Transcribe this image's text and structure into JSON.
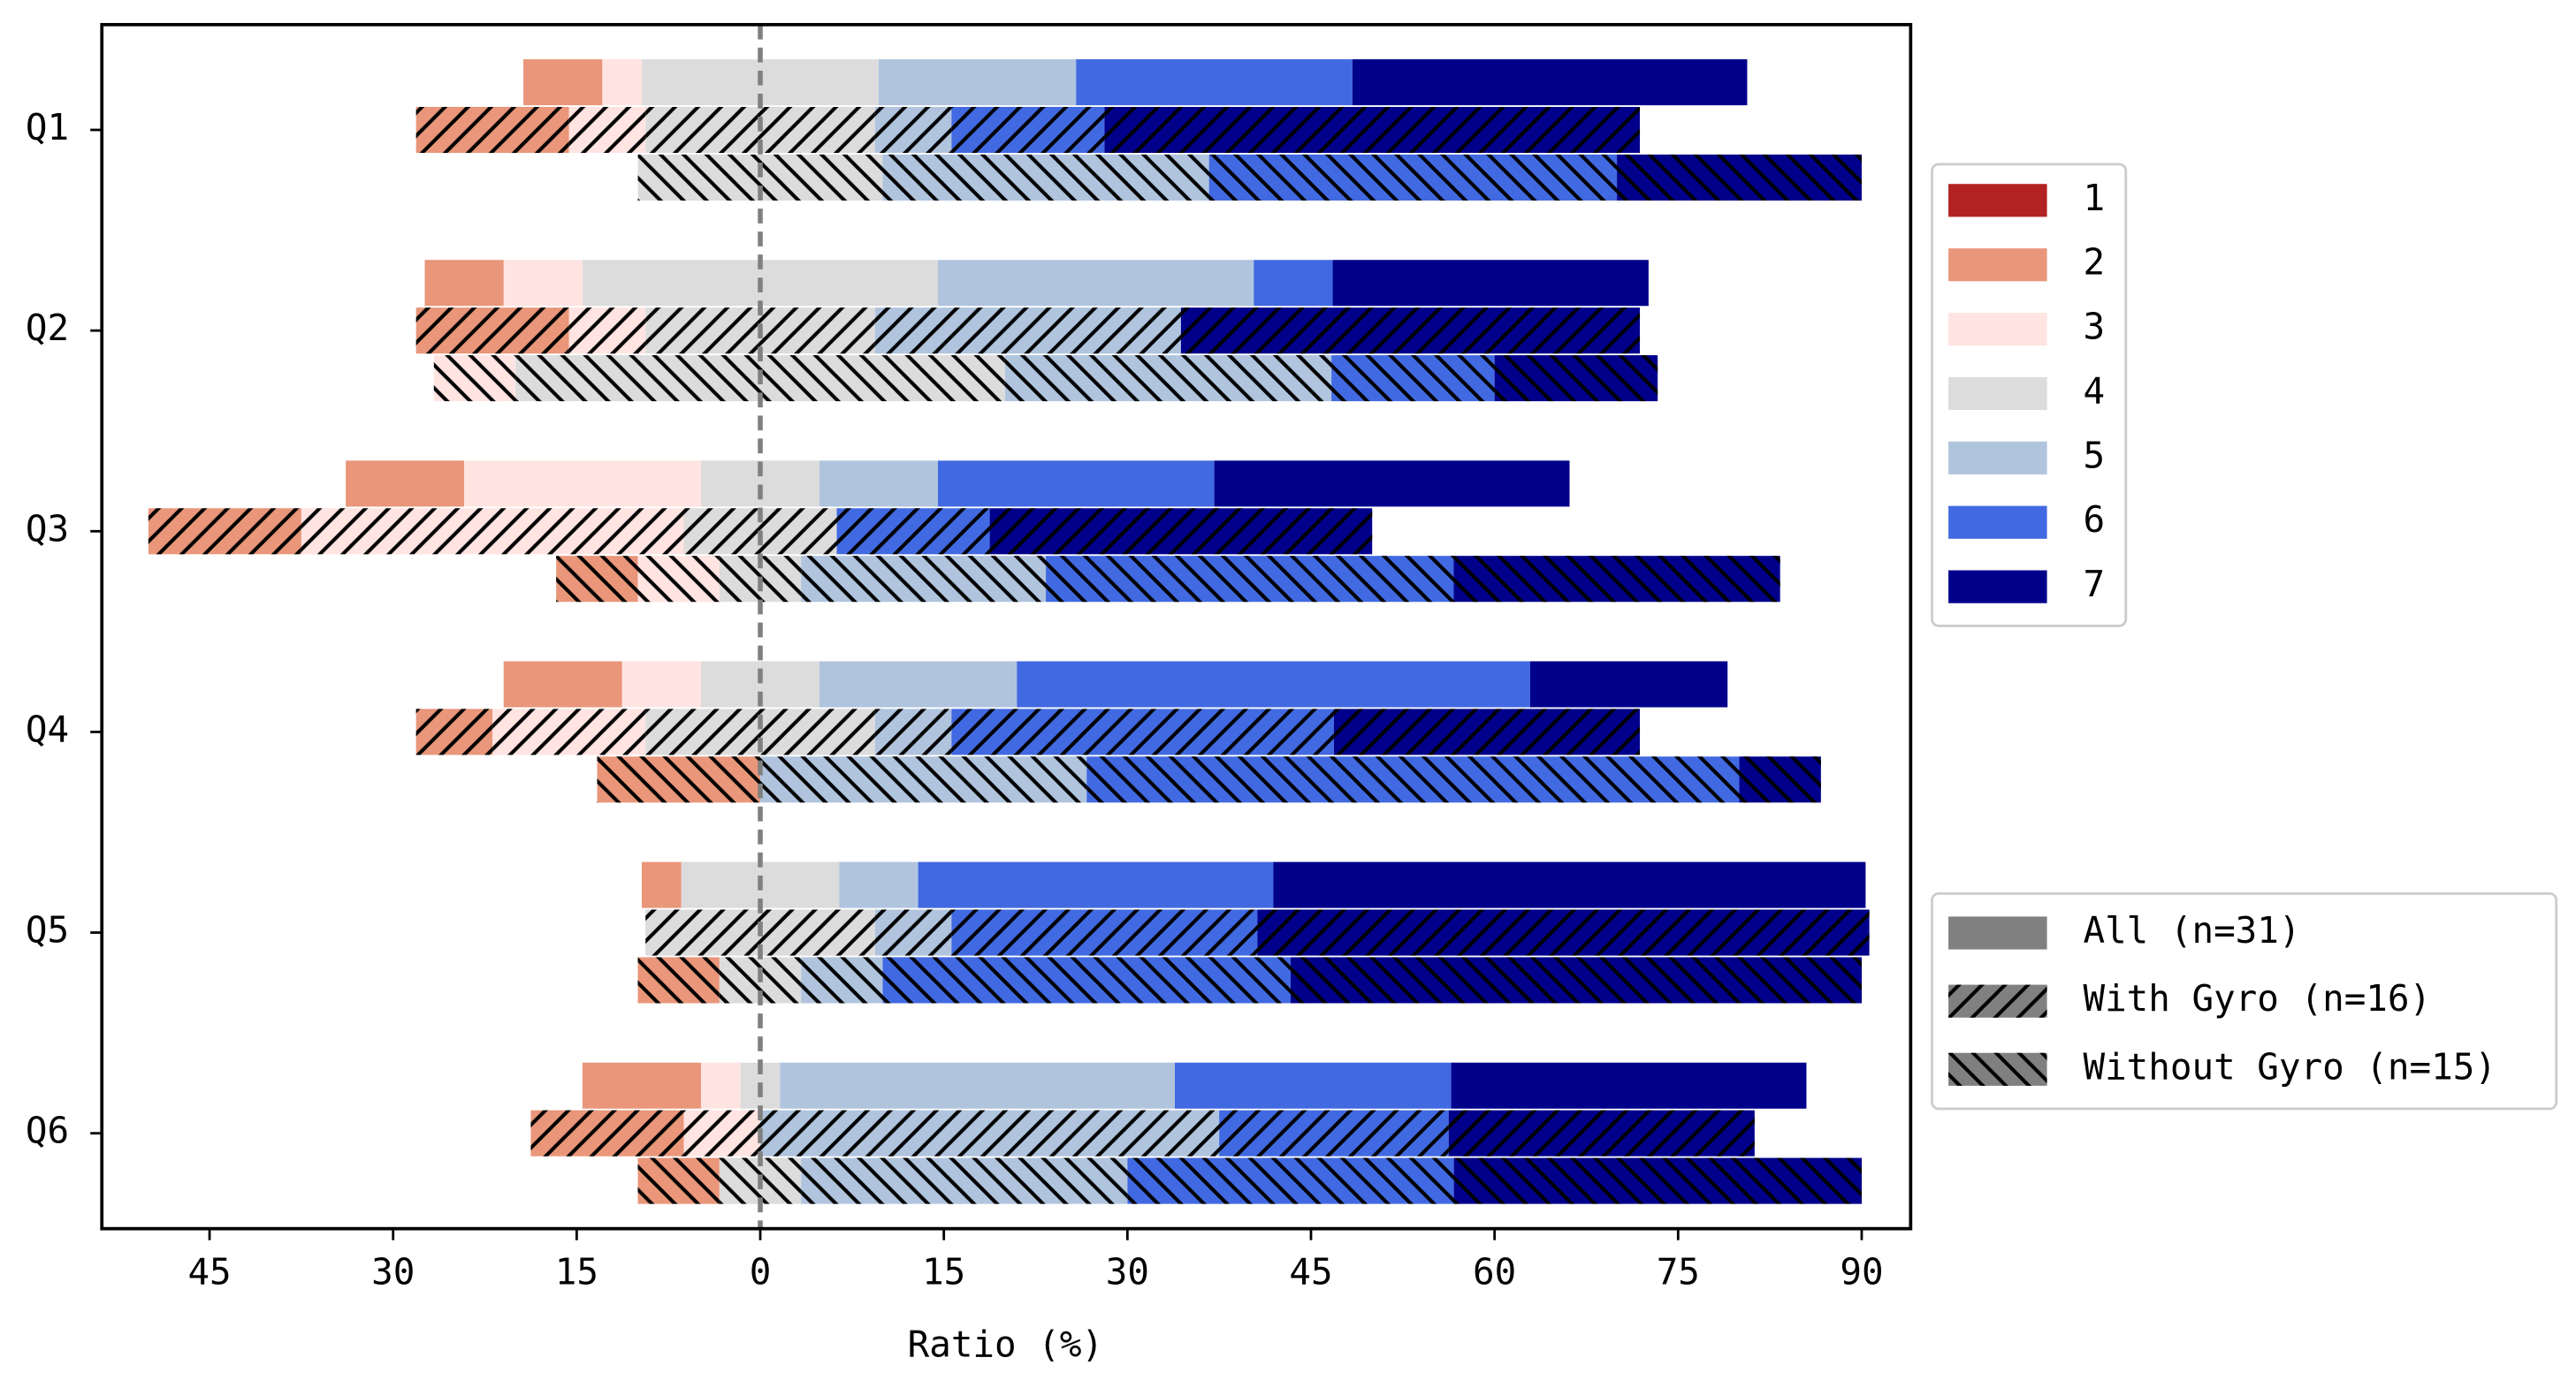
{
  "chart_data": {
    "type": "diverging_stacked_bar",
    "xlabel": "Ratio (%)",
    "categories": [
      "Q1",
      "Q2",
      "Q3",
      "Q4",
      "Q5",
      "Q6"
    ],
    "neutral_level": 3,
    "groups": [
      {
        "name": "All (n=31)",
        "hatch": "none"
      },
      {
        "name": "With Gyro (n=16)",
        "hatch": "/"
      },
      {
        "name": "Without Gyro (n=15)",
        "hatch": "\\"
      }
    ],
    "series": [
      {
        "name": "1",
        "color": "#b22222",
        "values": [
          [
            0,
            0,
            0
          ],
          [
            0,
            0,
            0
          ],
          [
            0,
            0,
            0
          ],
          [
            0,
            0,
            0
          ],
          [
            0,
            0,
            0
          ],
          [
            0,
            0,
            0
          ]
        ]
      },
      {
        "name": "2",
        "color": "#e9967a",
        "values": [
          [
            6.45,
            12.5,
            0
          ],
          [
            6.45,
            12.5,
            0
          ],
          [
            9.68,
            12.5,
            6.67
          ],
          [
            9.68,
            6.25,
            13.33
          ],
          [
            3.23,
            0,
            6.67
          ],
          [
            9.68,
            12.5,
            6.67
          ]
        ]
      },
      {
        "name": "3",
        "color": "#ffe4e1",
        "values": [
          [
            3.23,
            6.25,
            0
          ],
          [
            6.45,
            6.25,
            6.67
          ],
          [
            19.35,
            31.25,
            6.67
          ],
          [
            6.45,
            12.5,
            0
          ],
          [
            0,
            0,
            0
          ],
          [
            3.23,
            6.25,
            0
          ]
        ]
      },
      {
        "name": "4",
        "color": "#dcdcdc",
        "values": [
          [
            19.35,
            18.75,
            20
          ],
          [
            29.03,
            18.75,
            40
          ],
          [
            9.68,
            12.5,
            6.67
          ],
          [
            9.68,
            18.75,
            0
          ],
          [
            12.9,
            18.75,
            6.67
          ],
          [
            3.23,
            0,
            6.67
          ]
        ]
      },
      {
        "name": "5",
        "color": "#b0c4de",
        "values": [
          [
            16.13,
            6.25,
            26.67
          ],
          [
            25.81,
            25,
            26.67
          ],
          [
            9.68,
            0,
            20
          ],
          [
            16.13,
            6.25,
            26.67
          ],
          [
            6.45,
            6.25,
            6.67
          ],
          [
            32.26,
            37.5,
            26.67
          ]
        ]
      },
      {
        "name": "6",
        "color": "#4169e1",
        "values": [
          [
            22.58,
            12.5,
            33.33
          ],
          [
            6.45,
            0,
            13.33
          ],
          [
            22.58,
            12.5,
            33.33
          ],
          [
            41.94,
            31.25,
            53.33
          ],
          [
            29.03,
            25,
            33.33
          ],
          [
            22.58,
            18.75,
            26.67
          ]
        ]
      },
      {
        "name": "7",
        "color": "#00008b",
        "values": [
          [
            32.26,
            43.75,
            20
          ],
          [
            25.81,
            37.5,
            13.33
          ],
          [
            29.03,
            31.25,
            26.67
          ],
          [
            16.13,
            25,
            6.67
          ],
          [
            48.39,
            50,
            46.67
          ],
          [
            29.03,
            25,
            33.33
          ]
        ]
      }
    ],
    "group_legend_color": "#808080",
    "xlim": [
      -53.8,
      94
    ],
    "xticks": [
      {
        "value": -45,
        "label": "45"
      },
      {
        "value": -30,
        "label": "30"
      },
      {
        "value": -15,
        "label": "15"
      },
      0,
      15,
      30,
      45,
      60,
      75,
      90
    ],
    "zero_line": true,
    "legend": "right"
  }
}
